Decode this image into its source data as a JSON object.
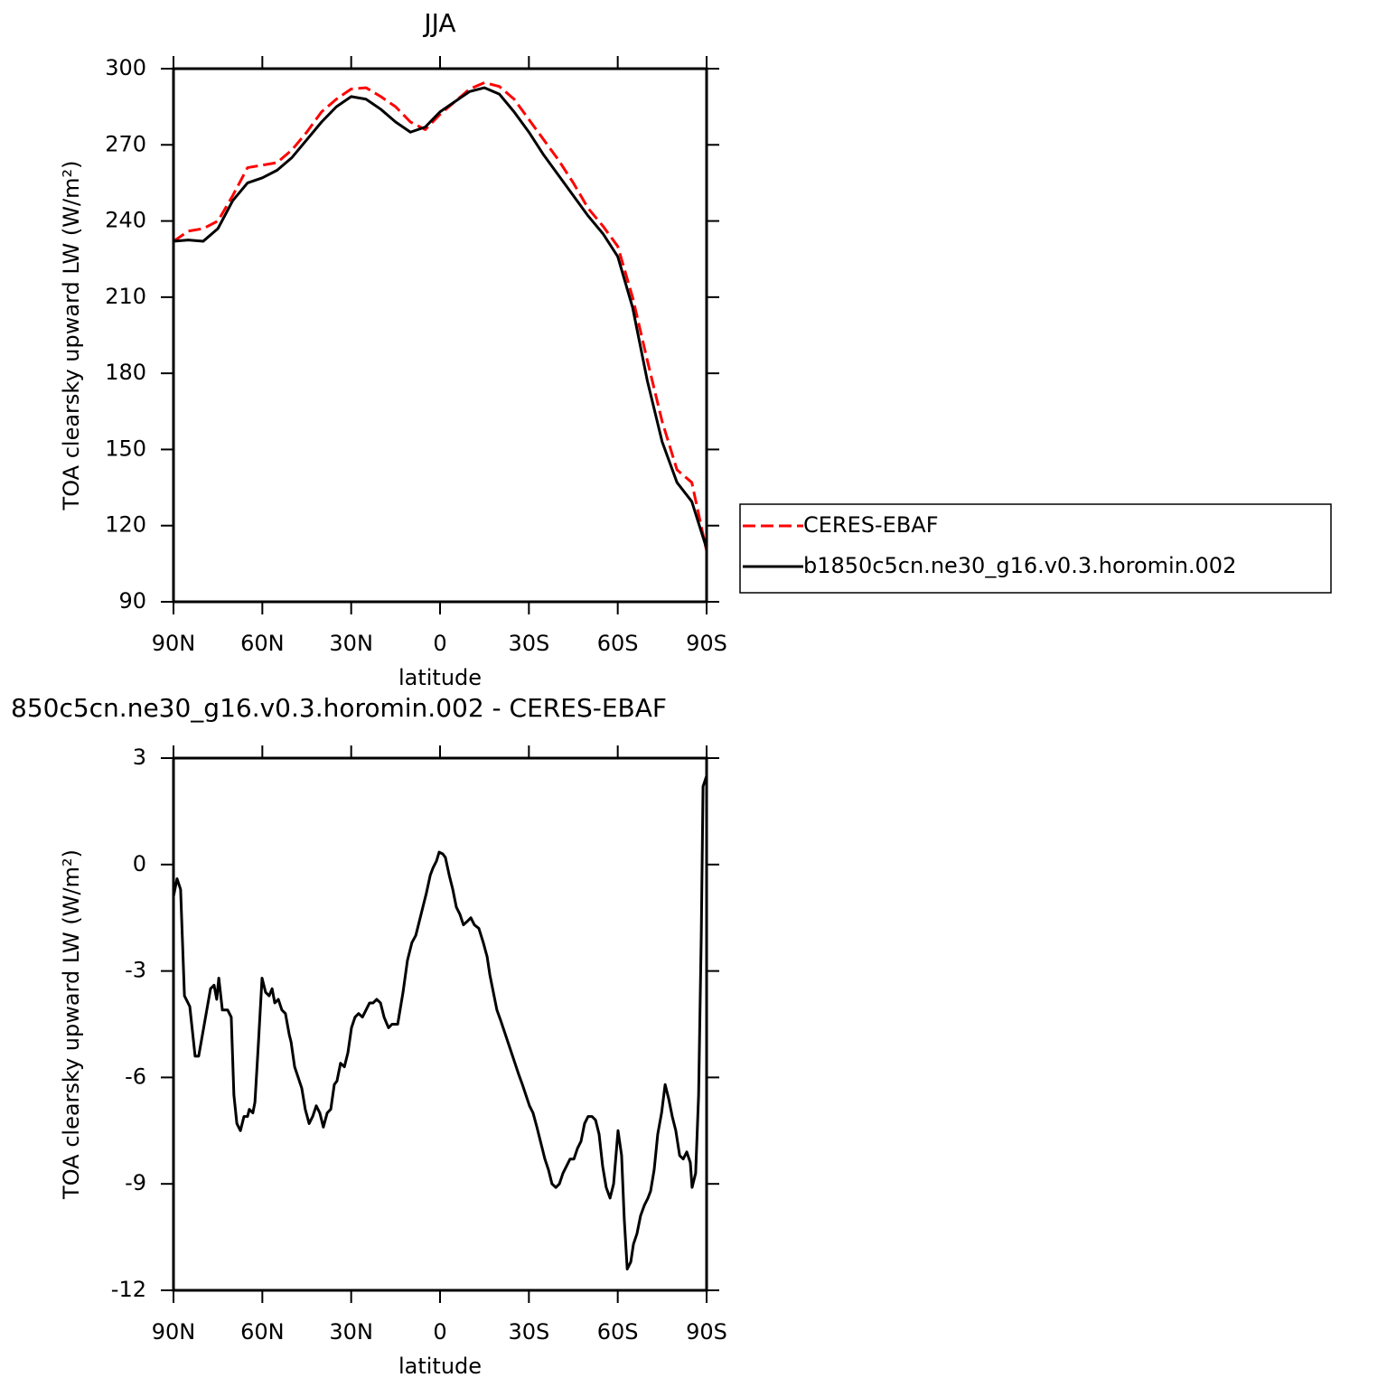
{
  "chart_data": [
    {
      "type": "line",
      "title": "JJA",
      "x_label": "latitude",
      "y_label": "TOA clearsky upward LW (W/m²)",
      "x": [
        90,
        85,
        80,
        75,
        70,
        65,
        60,
        55,
        50,
        45,
        40,
        35,
        30,
        25,
        20,
        15,
        10,
        5,
        0,
        -5,
        -10,
        -15,
        -20,
        -25,
        -30,
        -35,
        -40,
        -45,
        -50,
        -55,
        -60,
        -65,
        -70,
        -75,
        -80,
        -85,
        -90
      ],
      "series": [
        {
          "name": "CERES-EBAF",
          "color": "#ff0000",
          "line_style": "dashed",
          "values": [
            232,
            236,
            237,
            240,
            250,
            261,
            262,
            263,
            268,
            275,
            283,
            288,
            292,
            292.5,
            289,
            285,
            279,
            276,
            282,
            287,
            292,
            294.5,
            293,
            288,
            280,
            272,
            264,
            255,
            245,
            238,
            230,
            210,
            185,
            161,
            142,
            137,
            110
          ]
        },
        {
          "name": "b1850c5cn.ne30_g16.v0.3.horomin.002",
          "color": "#000000",
          "line_style": "solid",
          "values": [
            232,
            232.5,
            232,
            237,
            248,
            255,
            257,
            260,
            265,
            272,
            279,
            285,
            289,
            288,
            284,
            279,
            275,
            277,
            283,
            287,
            291,
            292.5,
            290,
            283,
            275,
            266,
            258,
            250,
            242,
            235,
            226,
            206,
            177,
            153,
            137,
            129.5,
            111
          ]
        }
      ],
      "xlim": [
        90,
        -90
      ],
      "xticks": [
        {
          "value": 90,
          "label": "90N"
        },
        {
          "value": 60,
          "label": "60N"
        },
        {
          "value": 30,
          "label": "30N"
        },
        0,
        {
          "value": -30,
          "label": "30S"
        },
        {
          "value": -60,
          "label": "60S"
        },
        {
          "value": -90,
          "label": "90S"
        }
      ],
      "ylim": [
        90,
        300
      ],
      "yticks": [
        90,
        120,
        150,
        180,
        210,
        240,
        270,
        300
      ],
      "legend": "right"
    },
    {
      "type": "line",
      "title": "850c5cn.ne30_g16.v0.3.horomin.002 - CERES-EBAF",
      "x_label": "latitude",
      "y_label": "TOA clearsky upward LW (W/m²)",
      "x": [
        90,
        88.8,
        87.6,
        86.3,
        84.5,
        82.7,
        81.5,
        79.6,
        77.5,
        76.3,
        75.4,
        74.7,
        73.5,
        71.7,
        70.5,
        69.6,
        68.6,
        67.4,
        66.2,
        65.0,
        64.4,
        63.2,
        62.5,
        61.3,
        60.1,
        58.9,
        57.7,
        56.7,
        55.8,
        54.6,
        53.4,
        52.2,
        50.9,
        50.3,
        49.1,
        47.9,
        46.7,
        45.5,
        44.2,
        43.0,
        41.8,
        40.6,
        39.4,
        38.1,
        36.9,
        35.7,
        34.8,
        33.6,
        32.3,
        31.1,
        29.9,
        28.7,
        27.5,
        26.2,
        25.0,
        23.8,
        22.6,
        21.4,
        20.1,
        18.9,
        17.4,
        16.2,
        14.3,
        12.5,
        11.0,
        9.5,
        8.2,
        7.0,
        5.8,
        4.6,
        3.3,
        2.4,
        1.2,
        0.3,
        -0.9,
        -1.8,
        -3.1,
        -4.3,
        -5.5,
        -6.7,
        -7.9,
        -9.2,
        -10.4,
        -11.6,
        -13.1,
        -14.6,
        -15.9,
        -16.8,
        -18.0,
        -19.2,
        -20.5,
        -21.7,
        -22.9,
        -24.1,
        -25.3,
        -26.5,
        -27.8,
        -29.0,
        -30.2,
        -31.4,
        -32.7,
        -33.9,
        -35.4,
        -36.6,
        -37.8,
        -39.1,
        -40.3,
        -41.5,
        -42.7,
        -43.9,
        -45.2,
        -46.4,
        -47.6,
        -48.8,
        -50.0,
        -51.3,
        -52.5,
        -53.7,
        -54.9,
        -56.1,
        -57.4,
        -58.6,
        -60.1,
        -61.3,
        -62.2,
        -63.2,
        -64.4,
        -65.3,
        -66.5,
        -67.7,
        -69.0,
        -70.2,
        -71.1,
        -72.3,
        -73.5,
        -74.8,
        -76.0,
        -77.2,
        -78.4,
        -79.6,
        -80.9,
        -82.1,
        -83.3,
        -84.5,
        -85.1,
        -86.3,
        -87.3,
        -88.2,
        -88.8,
        -90
      ],
      "values": [
        -0.9,
        -0.4,
        -0.7,
        -3.7,
        -4,
        -5.4,
        -5.4,
        -4.5,
        -3.5,
        -3.4,
        -3.8,
        -3.2,
        -4.1,
        -4.1,
        -4.3,
        -6.5,
        -7.3,
        -7.5,
        -7.1,
        -7.1,
        -6.9,
        -7.0,
        -6.7,
        -5.0,
        -3.2,
        -3.6,
        -3.7,
        -3.5,
        -3.9,
        -3.8,
        -4.1,
        -4.2,
        -4.8,
        -5.0,
        -5.7,
        -6.0,
        -6.3,
        -6.9,
        -7.3,
        -7.1,
        -6.8,
        -7.0,
        -7.4,
        -7.0,
        -6.9,
        -6.2,
        -6.1,
        -5.6,
        -5.7,
        -5.3,
        -4.6,
        -4.3,
        -4.2,
        -4.3,
        -4.1,
        -3.9,
        -3.9,
        -3.8,
        -3.9,
        -4.3,
        -4.6,
        -4.5,
        -4.5,
        -3.6,
        -2.7,
        -2.2,
        -2.0,
        -1.6,
        -1.2,
        -0.8,
        -0.3,
        -0.1,
        0.1,
        0.35,
        0.3,
        0.2,
        -0.3,
        -0.7,
        -1.2,
        -1.4,
        -1.7,
        -1.6,
        -1.5,
        -1.7,
        -1.8,
        -2.2,
        -2.6,
        -3.1,
        -3.6,
        -4.1,
        -4.4,
        -4.7,
        -5.0,
        -5.3,
        -5.6,
        -5.9,
        -6.2,
        -6.5,
        -6.8,
        -7.0,
        -7.4,
        -7.8,
        -8.3,
        -8.6,
        -9.0,
        -9.1,
        -9.0,
        -8.7,
        -8.5,
        -8.3,
        -8.3,
        -8.0,
        -7.8,
        -7.3,
        -7.1,
        -7.1,
        -7.2,
        -7.6,
        -8.5,
        -9.1,
        -9.4,
        -9.0,
        -7.5,
        -8.2,
        -10.0,
        -11.4,
        -11.2,
        -10.7,
        -10.4,
        -9.9,
        -9.6,
        -9.4,
        -9.2,
        -8.6,
        -7.6,
        -7.0,
        -6.2,
        -6.6,
        -7.1,
        -7.5,
        -8.2,
        -8.3,
        -8.1,
        -8.4,
        -9.1,
        -8.7,
        -6.5,
        -2.0,
        2.2,
        2.5
      ],
      "color": "#000000",
      "xlim": [
        90,
        -90
      ],
      "xticks": [
        {
          "value": 90,
          "label": "90N"
        },
        {
          "value": 60,
          "label": "60N"
        },
        {
          "value": 30,
          "label": "30N"
        },
        0,
        {
          "value": -30,
          "label": "30S"
        },
        {
          "value": -60,
          "label": "60S"
        },
        {
          "value": -90,
          "label": "90S"
        }
      ],
      "ylim": [
        -12,
        3
      ],
      "yticks": [
        -12,
        -9,
        -6,
        -3,
        0,
        3
      ]
    }
  ]
}
